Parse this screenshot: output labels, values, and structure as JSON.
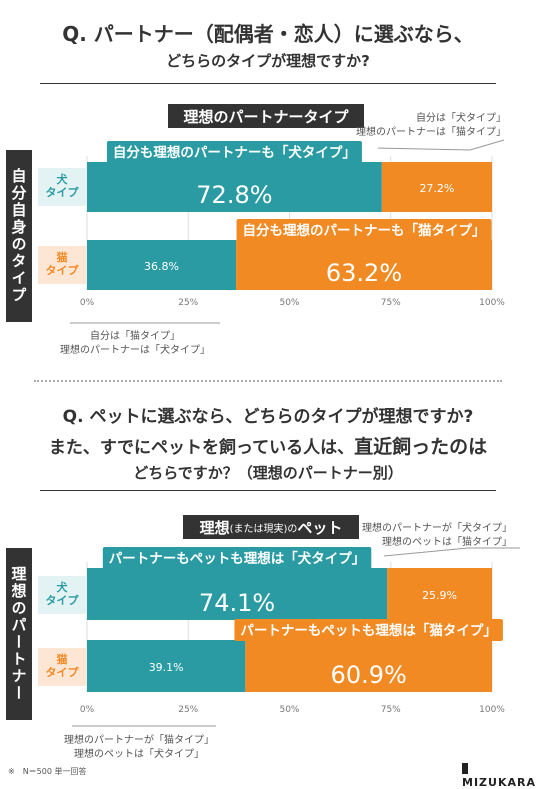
{
  "colors": {
    "dog": "#2a9ba3",
    "cat": "#f28a24",
    "dark": "#333333",
    "dog_bg": "#e3f2f3",
    "cat_bg": "#fde6d3"
  },
  "section1": {
    "question_line1": "Q. パートナー（配偶者・恋人）に選ぶなら、",
    "question_line2": "どちらのタイプが理想ですか?",
    "box_title": "理想のパートナータイプ",
    "side_title": "自分自身のタイプ",
    "note_top_line1": "自分は「犬タイプ」",
    "note_top_line2": "理想のパートナーは「猫タイプ」",
    "note_bottom_line1": "自分は「猫タイプ」",
    "note_bottom_line2": "理想のパートナーは「犬タイプ」"
  },
  "section2": {
    "question_line1": "Q. ペットに選ぶなら、どちらのタイプが理想ですか?",
    "question_line2a": "また、すでにペットを飼っている人は、",
    "question_line2b": "直近飼ったのは",
    "question_line3": "どちらですか？（理想のパートナー別）",
    "box_title_a": "理想",
    "box_title_b": "(または現実)の",
    "box_title_c": "ペット",
    "side_title": "理想のパートナー",
    "note_top_line1": "理想のパートナーが「犬タイプ」",
    "note_top_line2": "理想のペットは「猫タイプ」",
    "note_bottom_line1": "理想のパートナーが「猫タイプ」",
    "note_bottom_line2": "理想のペットは「犬タイプ」"
  },
  "row_labels": {
    "dog_line1": "犬",
    "dog_line2": "タイプ",
    "cat_line1": "猫",
    "cat_line2": "タイプ"
  },
  "footer": {
    "note": "※　N＝500 単一回答",
    "logo": "MIZUKARA"
  },
  "chart_data": [
    {
      "type": "bar",
      "orientation": "horizontal-stacked-100",
      "categories": [
        "犬タイプ",
        "猫タイプ"
      ],
      "series": [
        {
          "values": [
            72.8,
            36.8
          ]
        },
        {
          "values": [
            27.2,
            63.2
          ]
        }
      ],
      "callouts": [
        "自分も理想のパートナーも「犬タイプ」",
        "自分も理想のパートナーも「猫タイプ」"
      ],
      "xticks": [
        "0%",
        "25%",
        "50%",
        "75%",
        "100%"
      ],
      "xlim": [
        0,
        100
      ]
    },
    {
      "type": "bar",
      "orientation": "horizontal-stacked-100",
      "categories": [
        "犬タイプ",
        "猫タイプ"
      ],
      "series": [
        {
          "values": [
            74.1,
            39.1
          ]
        },
        {
          "values": [
            25.9,
            60.9
          ]
        }
      ],
      "callouts": [
        "パートナーもペットも理想は「犬タイプ」",
        "パートナーもペットも理想は「猫タイプ」"
      ],
      "xticks": [
        "0%",
        "25%",
        "50%",
        "75%",
        "100%"
      ],
      "xlim": [
        0,
        100
      ]
    }
  ]
}
